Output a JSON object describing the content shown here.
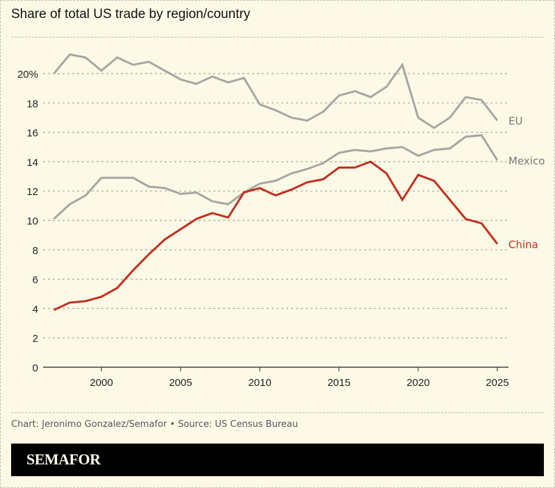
{
  "title": "Share of total US trade by region/country",
  "footer": "Chart: Jeronimo Gonzalez/Semafor • Source: US Census Bureau",
  "logo": "SEMAFOR",
  "chart_data": {
    "type": "line",
    "title": "Share of total US trade by region/country",
    "xlabel": "",
    "ylabel": "",
    "xlim": [
      1997,
      2025
    ],
    "ylim": [
      0,
      22
    ],
    "grid": true,
    "x_ticks": [
      2000,
      2005,
      2010,
      2015,
      2020,
      2025
    ],
    "y_ticks": [
      0,
      2,
      4,
      6,
      8,
      10,
      12,
      14,
      16,
      18,
      20
    ],
    "y_tick_labels": [
      "0",
      "2",
      "4",
      "6",
      "8",
      "10",
      "12",
      "14",
      "16",
      "18",
      "20%"
    ],
    "x": [
      1997,
      1998,
      1999,
      2000,
      2001,
      2002,
      2003,
      2004,
      2005,
      2006,
      2007,
      2008,
      2009,
      2010,
      2011,
      2012,
      2013,
      2014,
      2015,
      2016,
      2017,
      2018,
      2019,
      2020,
      2021,
      2022,
      2023,
      2024,
      2025
    ],
    "series": [
      {
        "name": "EU",
        "color": "#a8a6a3",
        "label_color": "#777777",
        "values": [
          20.0,
          21.3,
          21.1,
          20.2,
          21.1,
          20.6,
          20.8,
          20.2,
          19.6,
          19.3,
          19.8,
          19.4,
          19.7,
          17.9,
          17.5,
          17.0,
          16.8,
          17.4,
          18.5,
          18.8,
          18.4,
          19.1,
          20.6,
          17.0,
          16.3,
          17.0,
          18.4,
          18.2,
          16.8
        ]
      },
      {
        "name": "Mexico",
        "color": "#a8a6a3",
        "label_color": "#777777",
        "values": [
          10.1,
          11.1,
          11.7,
          12.9,
          12.9,
          12.9,
          12.3,
          12.2,
          11.8,
          11.9,
          11.3,
          11.1,
          11.9,
          12.5,
          12.7,
          13.2,
          13.5,
          13.9,
          14.6,
          14.8,
          14.7,
          14.9,
          15.0,
          14.4,
          14.8,
          14.9,
          15.7,
          15.8,
          14.1
        ]
      },
      {
        "name": "China",
        "color": "#c0301f",
        "label_color": "#c0301f",
        "values": [
          3.9,
          4.4,
          4.5,
          4.8,
          5.4,
          6.6,
          7.7,
          8.7,
          9.4,
          10.1,
          10.5,
          10.2,
          11.9,
          12.2,
          11.7,
          12.1,
          12.6,
          12.8,
          13.6,
          13.6,
          14.0,
          13.2,
          11.4,
          13.1,
          12.7,
          11.4,
          10.1,
          9.8,
          8.4
        ]
      }
    ]
  }
}
